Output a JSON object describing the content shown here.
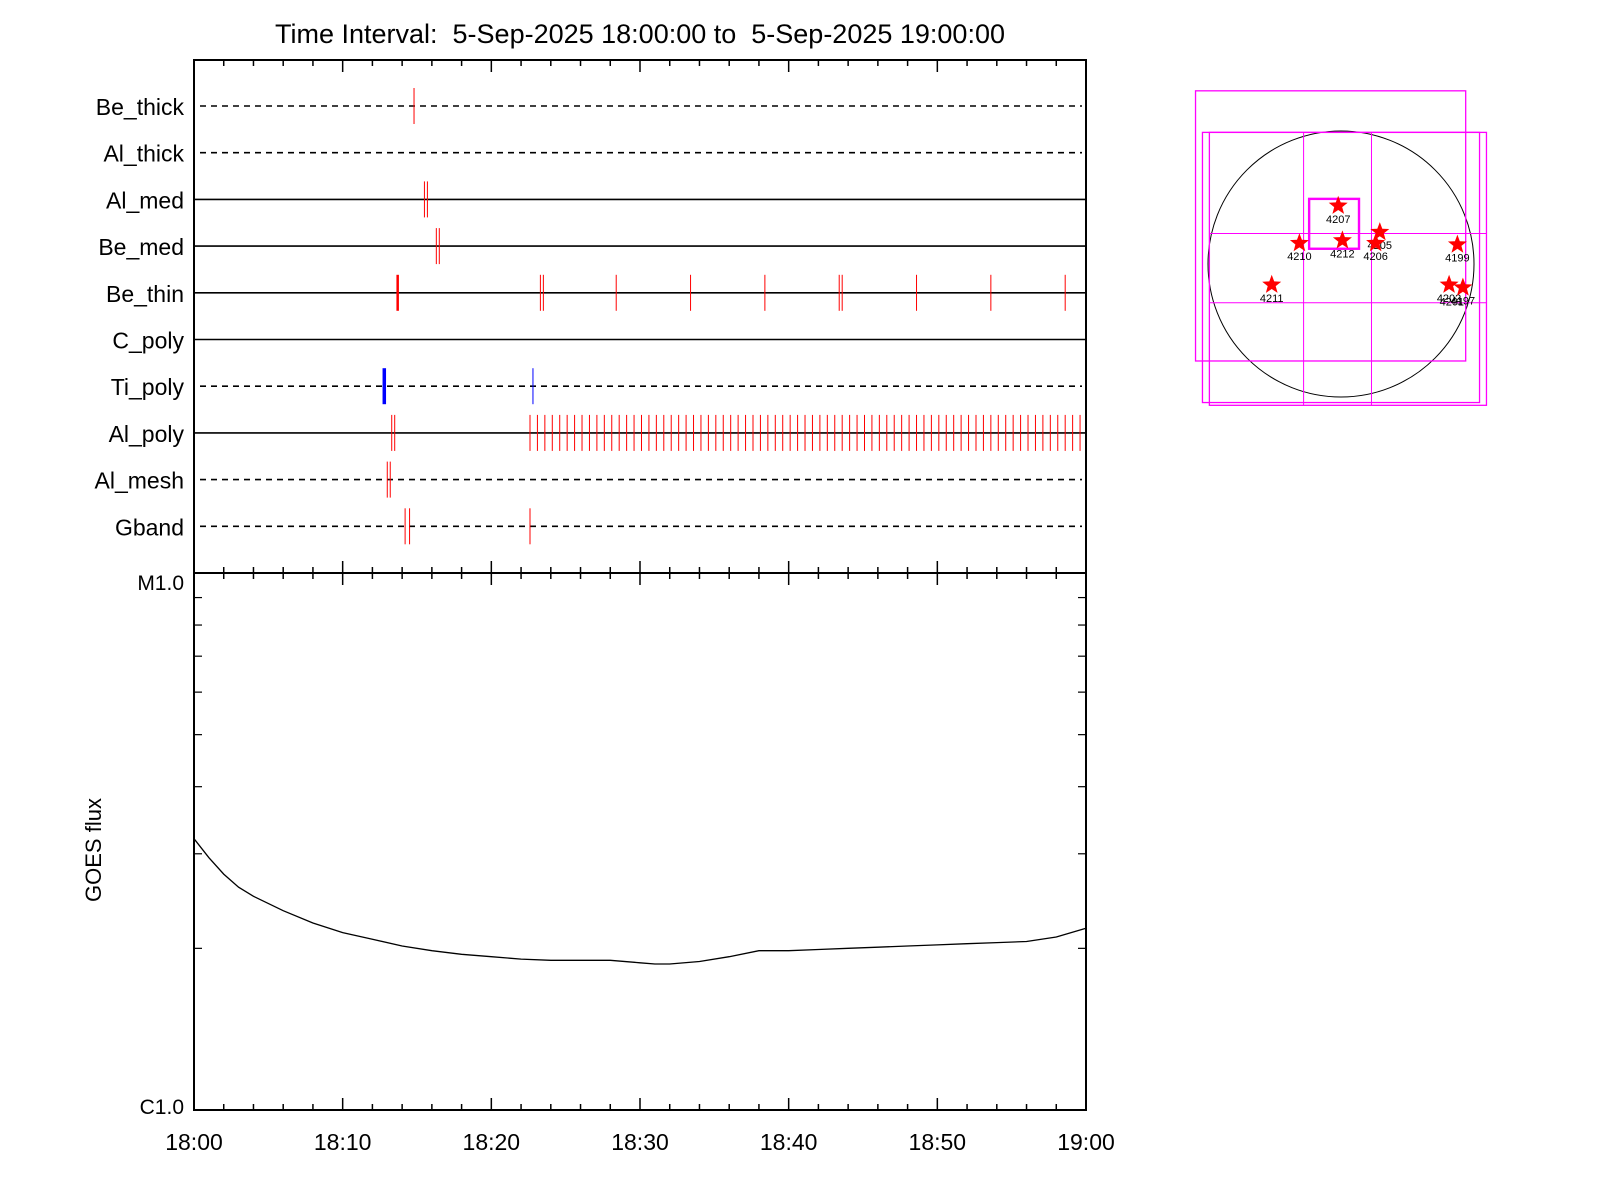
{
  "title": "Time Interval:  5-Sep-2025 18:00:00 to  5-Sep-2025 19:00:00",
  "chart_data": [
    {
      "type": "timeline",
      "x": {
        "range_minutes": [
          0,
          60
        ]
      },
      "rows": [
        {
          "label": "Be_thick",
          "style": "dashed",
          "marks": [
            {
              "t": 14.8,
              "color": "#ff0000",
              "width": 1
            }
          ]
        },
        {
          "label": "Al_thick",
          "style": "dashed",
          "marks": []
        },
        {
          "label": "Al_med",
          "style": "solid",
          "marks": [
            {
              "t": 15.5,
              "color": "#ff0000",
              "width": 1
            },
            {
              "t": 15.7,
              "color": "#ff0000",
              "width": 1
            }
          ]
        },
        {
          "label": "Be_med",
          "style": "solid",
          "marks": [
            {
              "t": 16.3,
              "color": "#ff0000",
              "width": 1
            },
            {
              "t": 16.5,
              "color": "#ff0000",
              "width": 1
            }
          ]
        },
        {
          "label": "Be_thin",
          "style": "solid",
          "marks": [
            {
              "t": 13.7,
              "color": "#ff0000",
              "width": 2.5
            },
            {
              "t": 23.3,
              "color": "#ff0000",
              "width": 1
            },
            {
              "t": 23.5,
              "color": "#ff0000",
              "width": 1
            },
            {
              "t": 28.4,
              "color": "#ff0000",
              "width": 1
            },
            {
              "t": 33.4,
              "color": "#ff0000",
              "width": 1
            },
            {
              "t": 38.4,
              "color": "#ff0000",
              "width": 1
            },
            {
              "t": 43.4,
              "color": "#ff0000",
              "width": 1
            },
            {
              "t": 43.6,
              "color": "#ff0000",
              "width": 1
            },
            {
              "t": 48.6,
              "color": "#ff0000",
              "width": 1
            },
            {
              "t": 53.6,
              "color": "#ff0000",
              "width": 1
            },
            {
              "t": 58.6,
              "color": "#ff0000",
              "width": 1
            }
          ]
        },
        {
          "label": "C_poly",
          "style": "solid",
          "marks": []
        },
        {
          "label": "Ti_poly",
          "style": "dashed",
          "marks": [
            {
              "t": 12.8,
              "color": "#0000ff",
              "width": 3.5
            },
            {
              "t": 22.8,
              "color": "#0000ff",
              "width": 1
            }
          ]
        },
        {
          "label": "Al_poly",
          "style": "solid",
          "marks": [
            {
              "t": 13.3,
              "color": "#ff0000",
              "width": 1
            },
            {
              "t": 13.5,
              "color": "#ff0000",
              "width": 1
            }
          ],
          "dense_marks": {
            "start": 22.6,
            "end": 60,
            "step": 0.5,
            "color": "#ff0000"
          }
        },
        {
          "label": "Al_mesh",
          "style": "dashed",
          "marks": [
            {
              "t": 13.0,
              "color": "#ff0000",
              "width": 1
            },
            {
              "t": 13.2,
              "color": "#ff0000",
              "width": 1
            }
          ]
        },
        {
          "label": "Gband",
          "style": "dashed",
          "marks": [
            {
              "t": 14.2,
              "color": "#ff0000",
              "width": 1
            },
            {
              "t": 14.5,
              "color": "#ff0000",
              "width": 1
            },
            {
              "t": 22.6,
              "color": "#ff0000",
              "width": 1
            }
          ]
        }
      ]
    },
    {
      "type": "line",
      "ylabel": "GOES flux",
      "yscale": "log",
      "ylim": [
        1e-06,
        1e-05
      ],
      "y_tick_labels": [
        "C1.0",
        "M1.0"
      ],
      "x_tick_labels": [
        "18:00",
        "18:10",
        "18:20",
        "18:30",
        "18:40",
        "18:50",
        "19:00"
      ],
      "xlim_minutes": [
        0,
        60
      ],
      "grid": false,
      "series": [
        {
          "color": "#000000",
          "x": [
            0,
            1,
            2,
            3,
            4,
            6,
            8,
            10,
            12,
            14,
            16,
            18,
            20,
            22,
            24,
            26,
            28,
            30,
            31,
            32,
            34,
            36,
            38,
            40,
            42,
            44,
            46,
            48,
            50,
            52,
            54,
            56,
            58,
            60
          ],
          "y": [
            3.2e-06,
            2.95e-06,
            2.75e-06,
            2.6e-06,
            2.5e-06,
            2.35e-06,
            2.23e-06,
            2.14e-06,
            2.08e-06,
            2.02e-06,
            1.98e-06,
            1.95e-06,
            1.93e-06,
            1.91e-06,
            1.9e-06,
            1.9e-06,
            1.9e-06,
            1.88e-06,
            1.87e-06,
            1.87e-06,
            1.89e-06,
            1.93e-06,
            1.98e-06,
            1.98e-06,
            1.99e-06,
            2e-06,
            2.01e-06,
            2.02e-06,
            2.03e-06,
            2.04e-06,
            2.05e-06,
            2.06e-06,
            2.1e-06,
            2.18e-06
          ]
        }
      ]
    },
    {
      "type": "solar-disk-map",
      "regions": [
        {
          "label": "4207",
          "x": -20,
          "y": 420,
          "star": true
        },
        {
          "label": "4205",
          "x": 280,
          "y": 230,
          "star": true
        },
        {
          "label": "4212",
          "x": 10,
          "y": 170,
          "star": true
        },
        {
          "label": "4206",
          "x": 250,
          "y": 150,
          "star": true
        },
        {
          "label": "4210",
          "x": -300,
          "y": 150,
          "star": true
        },
        {
          "label": "4199",
          "x": 840,
          "y": 140,
          "star": true
        },
        {
          "label": "4211",
          "x": -500,
          "y": -150,
          "star": true
        },
        {
          "label": "4202",
          "x": 780,
          "y": -150,
          "star": true
        },
        {
          "label": "4197",
          "x": 880,
          "y": -170,
          "star": true
        },
        {
          "label": "4201",
          "x": 800,
          "y": -240,
          "star": false
        }
      ],
      "fov_boxes": [
        {
          "x0": -1050,
          "y0": -700,
          "x1": 900,
          "y1": 1250
        },
        {
          "x0": -1000,
          "y0": -1000,
          "x1": 1000,
          "y1": 950
        },
        {
          "x0": -950,
          "y0": -1020,
          "x1": 1050,
          "y1": 950
        },
        {
          "x0": -230,
          "y0": 110,
          "x1": 130,
          "y1": 470
        }
      ],
      "grid_lines_x": [
        -270,
        220
      ],
      "grid_lines_y": [
        -280,
        220
      ],
      "colors": {
        "disk": "#000000",
        "box": "#ff00ff",
        "star": "#ff0000"
      }
    }
  ]
}
